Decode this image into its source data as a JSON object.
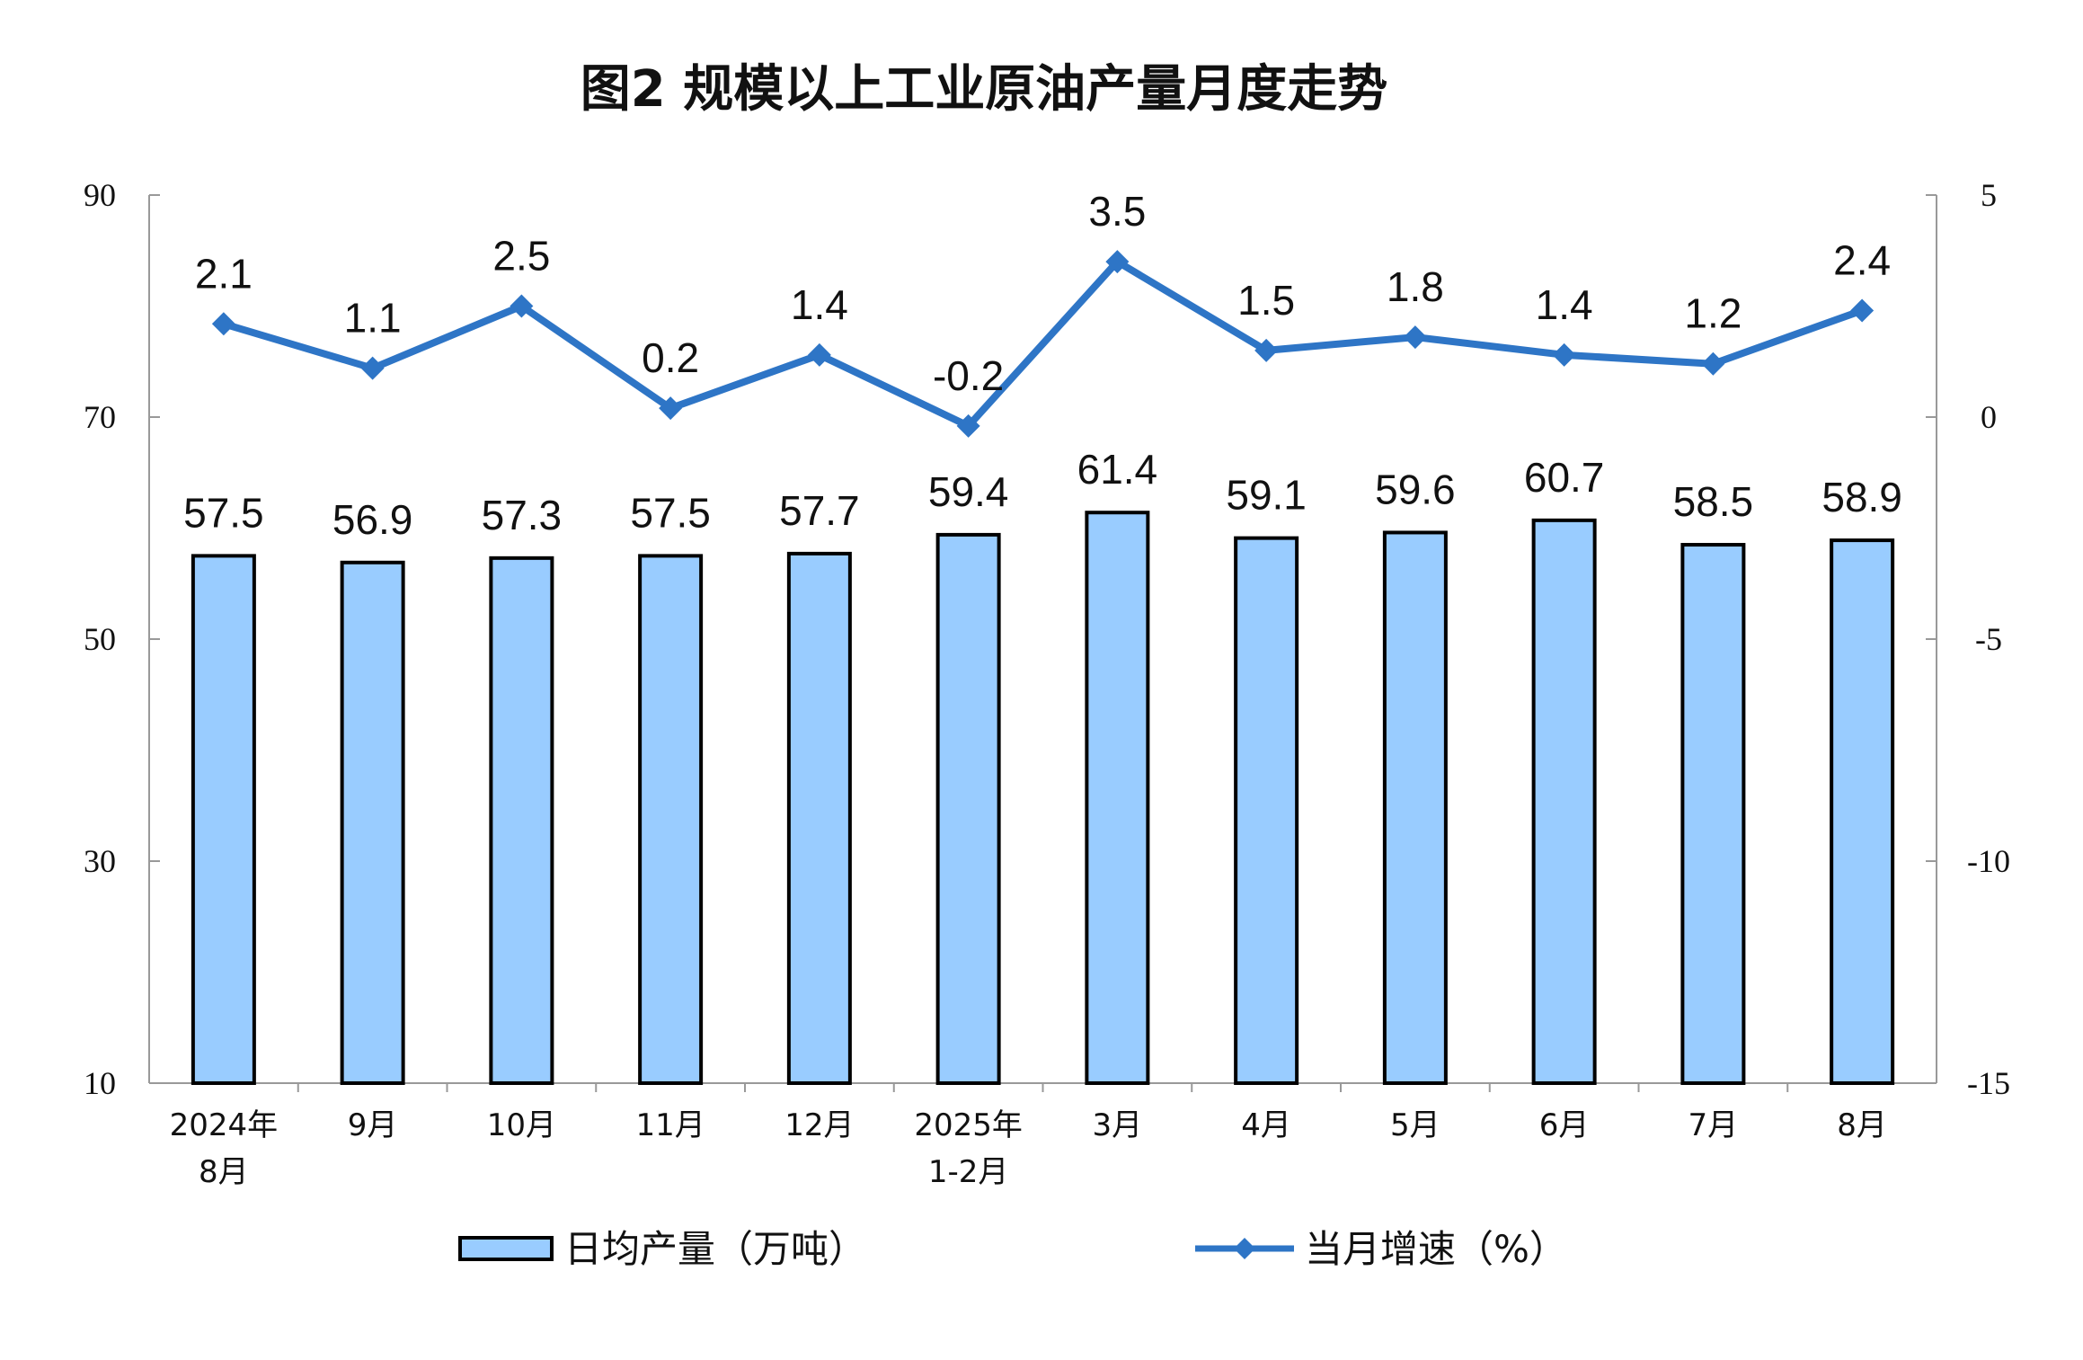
{
  "chart_data": {
    "type": "bar+line",
    "title": "图2  规模以上工业原油产量月度走势",
    "categories": [
      [
        "2024年",
        "8月"
      ],
      [
        "9月"
      ],
      [
        "10月"
      ],
      [
        "11月"
      ],
      [
        "12月"
      ],
      [
        "2025年",
        "1-2月"
      ],
      [
        "3月"
      ],
      [
        "4月"
      ],
      [
        "5月"
      ],
      [
        "6月"
      ],
      [
        "7月"
      ],
      [
        "8月"
      ]
    ],
    "series": [
      {
        "name": "日均产量（万吨）",
        "type": "bar",
        "axis": "left",
        "color": "#99CCFF",
        "values": [
          57.5,
          56.9,
          57.3,
          57.5,
          57.7,
          59.4,
          61.4,
          59.1,
          59.6,
          60.7,
          58.5,
          58.9
        ]
      },
      {
        "name": "当月增速（%）",
        "type": "line",
        "axis": "right",
        "color": "#2E75C6",
        "values": [
          2.1,
          1.1,
          2.5,
          0.2,
          1.4,
          -0.2,
          3.5,
          1.5,
          1.8,
          1.4,
          1.2,
          2.4
        ]
      }
    ],
    "left_axis": {
      "ylim": [
        10,
        90
      ],
      "ticks": [
        10,
        30,
        50,
        70,
        90
      ]
    },
    "right_axis": {
      "ylim": [
        -15,
        5
      ],
      "ticks": [
        -15,
        -10,
        -5,
        0,
        5
      ]
    },
    "legend_placement": "bottom",
    "grid": false
  }
}
